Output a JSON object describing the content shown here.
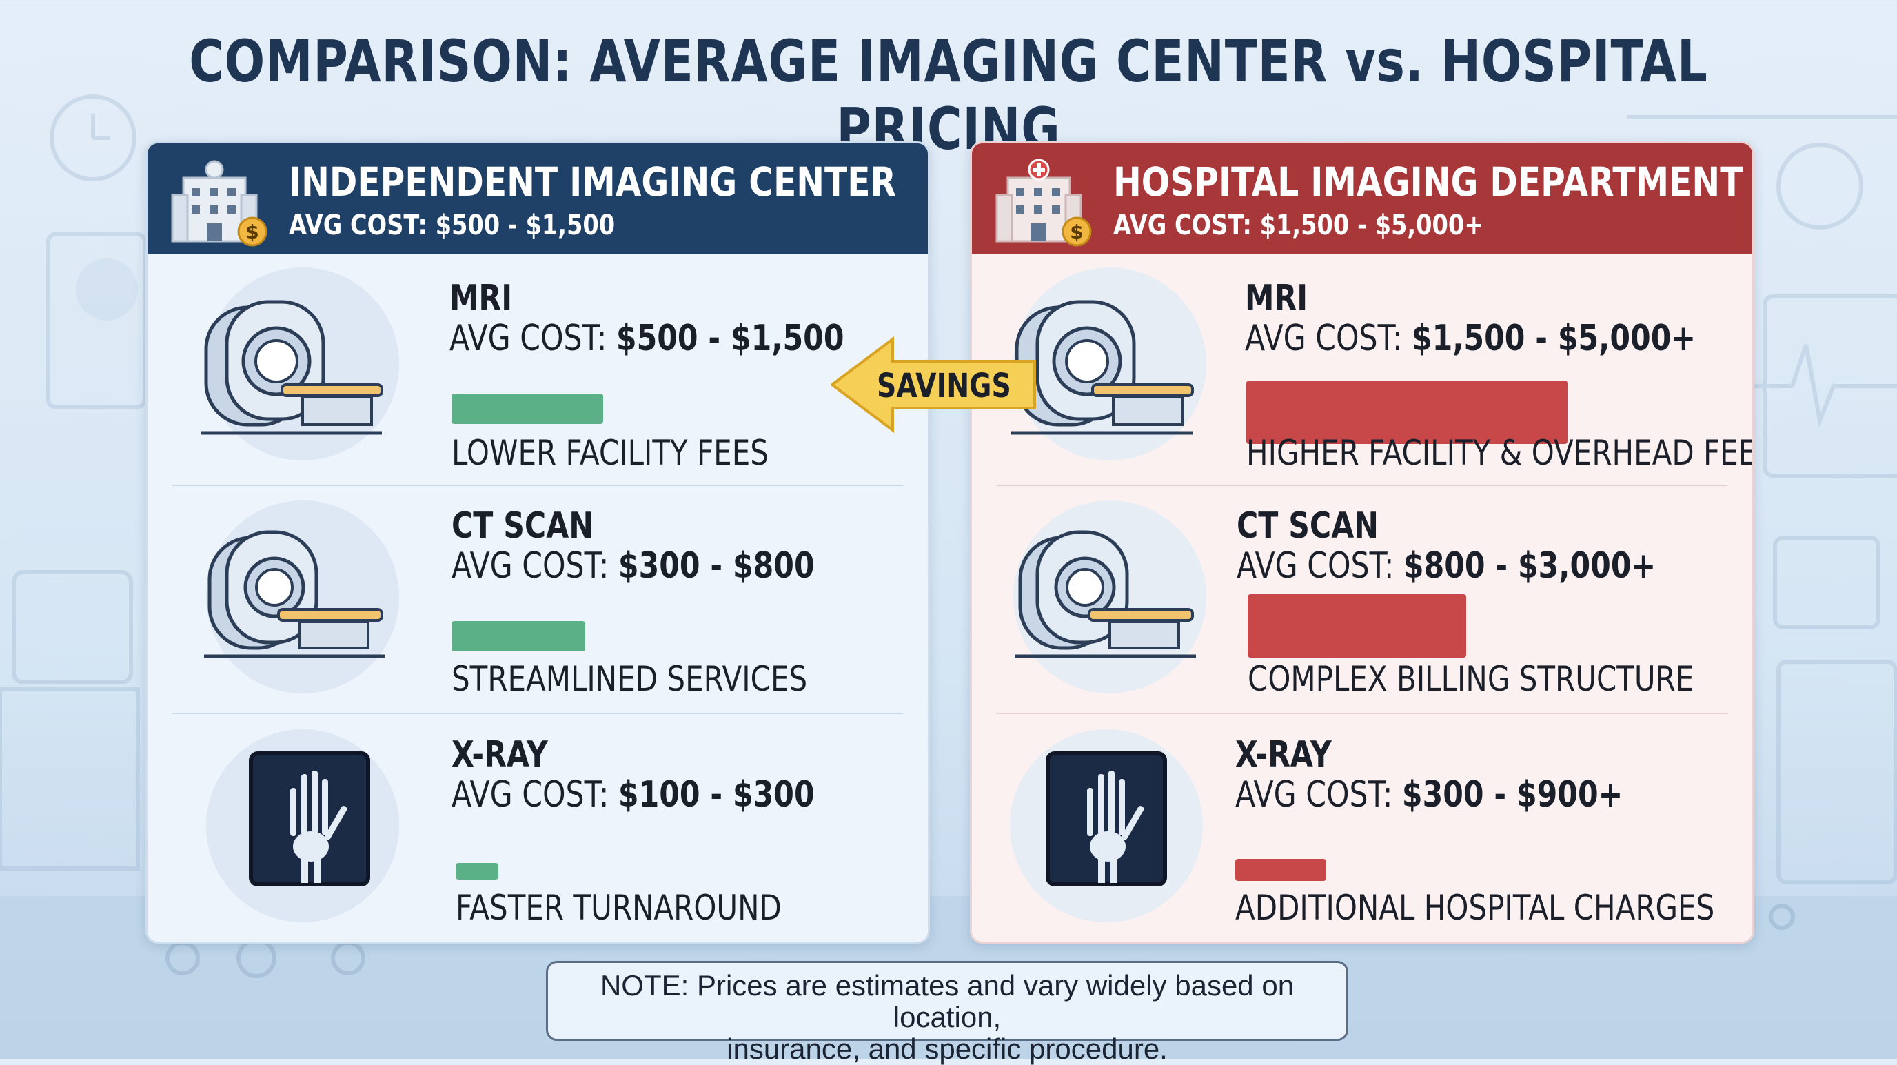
{
  "title": "COMPARISON: AVERAGE IMAGING CENTER vs. HOSPITAL PRICING",
  "savings_label": "SAVINGS",
  "colors": {
    "left_header": "#1f4168",
    "right_header": "#a8373a",
    "left_bar": "#5bb087",
    "right_bar": "#c8484a",
    "savings_arrow": "#f6cf56"
  },
  "left": {
    "title": "INDEPENDENT IMAGING CENTER",
    "avg": "AVG COST: $500 - $1,500",
    "header_icon": "building-dollar-icon",
    "rows": [
      {
        "name": "MRI",
        "cost_prefix": "AVG COST: ",
        "cost_value": "$500 - $1,500",
        "feature": "LOWER FACILITY FEES",
        "icon": "mri-scanner-icon",
        "bar_level": 0.25
      },
      {
        "name": "CT SCAN",
        "cost_prefix": "AVG COST: ",
        "cost_value": "$300 - $800",
        "feature": "STREAMLINED SERVICES",
        "icon": "ct-scanner-icon",
        "bar_level": 0.22
      },
      {
        "name": "X-RAY",
        "cost_prefix": "AVG COST: ",
        "cost_value": "$100 - $300",
        "feature": "FASTER TURNAROUND",
        "icon": "xray-hand-icon",
        "bar_level": 0.07
      }
    ]
  },
  "right": {
    "title": "HOSPITAL IMAGING DEPARTMENT",
    "avg": "AVG COST: $1,500 - $5,000+",
    "header_icon": "hospital-dollar-icon",
    "rows": [
      {
        "name": "MRI",
        "cost_prefix": "AVG COST: ",
        "cost_value": "$1,500 - $5,000+",
        "feature": "HIGHER FACILITY & OVERHEAD FEES",
        "icon": "mri-scanner-icon",
        "bar_level": 0.53
      },
      {
        "name": "CT SCAN",
        "cost_prefix": "AVG COST: ",
        "cost_value": "$800 - $3,000+",
        "feature": "COMPLEX BILLING STRUCTURE",
        "icon": "ct-scanner-icon",
        "bar_level": 0.36
      },
      {
        "name": "X-RAY",
        "cost_prefix": "AVG COST: ",
        "cost_value": "$300 - $900+",
        "feature": "ADDITIONAL HOSPITAL CHARGES",
        "icon": "xray-hand-icon",
        "bar_level": 0.15
      }
    ]
  },
  "note": {
    "line1": "NOTE: Prices are estimates and vary widely based on location,",
    "line2": "insurance, and specific procedure."
  }
}
